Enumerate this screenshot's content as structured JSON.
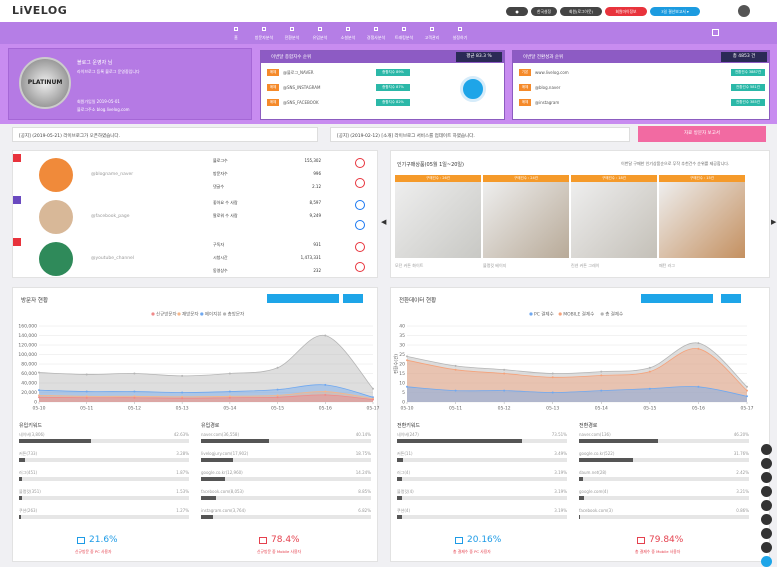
{
  "header": {
    "logo": "LiVELOG",
    "buttons": [
      "●",
      "한국설정",
      "회원(로그아웃)",
      "회원마이정보",
      "3일 결산보고서 ▾"
    ]
  },
  "nav": [
    "홈",
    "방문자분석",
    "전환분석",
    "유입분석",
    "소셜분석",
    "경쟁사분석",
    "트래킹분석",
    "고객관리",
    "설정하기"
  ],
  "profile": {
    "grade": "PLATINUM",
    "name": "블로그 운영자 님",
    "desc": "라이브로그 등록 블로그 운영중입니다",
    "since": "회원가입일 2019-05-01",
    "email": "블로그주소 blog.livelog.com"
  },
  "rank_left": {
    "title": "이번달 종합지수 순위",
    "badge": "평균 83.3 %",
    "rows": [
      {
        "tag": "매체",
        "name": "@블로그_NAVER",
        "score": "종합지수 89%"
      },
      {
        "tag": "매체",
        "name": "@SNS_INSTAGRAM",
        "score": "종합지수 87%"
      },
      {
        "tag": "매체",
        "name": "@SNS_FACEBOOK",
        "score": "종합지수 82%"
      }
    ]
  },
  "rank_right": {
    "title": "이번달 전환성과 순위",
    "badge": "총 4853 건",
    "rows": [
      {
        "tag": "기본",
        "name": "www.livelog.com",
        "score": "전환건수 3887건"
      },
      {
        "tag": "매체",
        "name": "@blog.naver",
        "score": "전환건수 581건"
      },
      {
        "tag": "매체",
        "name": "@instagram",
        "score": "전환건수 385건"
      }
    ]
  },
  "notices": [
    "[공지] (2019-05-21) 라이브로그가 오픈하였습니다.",
    "[공지] (2019-02-12) [소개] 라이브로그 서비스를 업데이트 하였습니다."
  ],
  "report_button": "자료 방문자 보고서",
  "social": [
    {
      "name": "@blogname_naver",
      "stats": [
        [
          "블로그수",
          "155,302"
        ],
        [
          "방문자수",
          "996"
        ],
        [
          "댓글수",
          "2.12"
        ]
      ]
    },
    {
      "name": "@facebook_page",
      "stats": [
        [
          "좋아요 수 사람",
          "8,597"
        ],
        [
          "팔로워 수 사람",
          "9,249"
        ]
      ]
    },
    {
      "name": "@youtube_channel",
      "stats": [
        [
          "구독자",
          "931"
        ],
        [
          "시청시간",
          "1,473,331"
        ],
        [
          "동영상수",
          "232"
        ]
      ]
    }
  ],
  "products": {
    "title": "인기구매상품(05월 1일~20일)",
    "subtitle": "이번달 구매한 인기상품순으로 무작 추천건수 순위를 제공합니다.",
    "items": [
      {
        "tag": "구매건수 : 26건",
        "name": "모던 커튼 화이트"
      },
      {
        "tag": "구매건수 : 24건",
        "name": "블랭킷 베이지"
      },
      {
        "tag": "구매건수 : 18건",
        "name": "린넨 커튼 그레이"
      },
      {
        "tag": "구매건수 : 15건",
        "name": "패턴 러그"
      }
    ]
  },
  "chart_data": [
    {
      "type": "area",
      "title": "방문자 현황",
      "categories": [
        "05-10",
        "05-11",
        "05-12",
        "05-13",
        "05-14",
        "05-15",
        "05-16",
        "05-17"
      ],
      "series": [
        {
          "name": "신규방문자",
          "color": "#f08a8a",
          "values": [
            10000,
            9000,
            9000,
            8000,
            9000,
            10000,
            15000,
            5000
          ]
        },
        {
          "name": "재방문자",
          "color": "#f5b68a",
          "values": [
            14000,
            12000,
            12000,
            11000,
            12000,
            14000,
            22000,
            7000
          ]
        },
        {
          "name": "페이지뷰",
          "color": "#6fa8f0",
          "values": [
            25000,
            22000,
            22000,
            20000,
            22000,
            26000,
            36000,
            10000
          ]
        },
        {
          "name": "총방문자",
          "color": "#b5b5b5",
          "values": [
            62000,
            58000,
            60000,
            55000,
            60000,
            72000,
            140000,
            28000
          ]
        }
      ],
      "ylim": [
        0,
        160000
      ],
      "yticks": [
        0,
        {
          "value": 20000,
          "label": "20,000"
        },
        {
          "value": 40000,
          "label": "40,000"
        },
        {
          "value": 60000,
          "label": "60,000"
        },
        {
          "value": 80000,
          "label": "80,000"
        },
        {
          "value": 100000,
          "label": "100,000"
        },
        {
          "value": 120000,
          "label": "120,000"
        },
        {
          "value": 140000,
          "label": "140,000"
        },
        {
          "value": 160000,
          "label": "160,000"
        }
      ],
      "grid": true
    },
    {
      "type": "area",
      "title": "전환데이터 현황",
      "y_label": "전환수(건)",
      "categories": [
        "05-10",
        "05-11",
        "05-12",
        "05-13",
        "05-14",
        "05-15",
        "05-16",
        "05-17"
      ],
      "series": [
        {
          "name": "PC 결제수",
          "color": "#6fa8f0",
          "values": [
            8,
            6,
            6,
            5,
            6,
            7,
            8,
            3
          ]
        },
        {
          "name": "MOBILE 결제수",
          "color": "#f5a27a",
          "values": [
            22,
            17,
            15,
            13,
            14,
            16,
            28,
            6
          ]
        },
        {
          "name": "총 결제수",
          "color": "#b5b5b5",
          "values": [
            24,
            19,
            17,
            15,
            16,
            18,
            31,
            8
          ]
        }
      ],
      "ylim": [
        0,
        40
      ],
      "yticks": [
        0,
        5,
        10,
        15,
        20,
        25,
        30,
        35,
        40
      ],
      "grid": true
    }
  ],
  "keywords": [
    {
      "title": "유입키워드",
      "items": [
        {
          "name": "네이버(3,806)",
          "value": 42.63,
          "label": "42.63%"
        },
        {
          "name": "커튼(733)",
          "value": 3.28,
          "label": "3.28%"
        },
        {
          "name": "러그(451)",
          "value": 1.87,
          "label": "1.87%"
        },
        {
          "name": "블랭킷(351)",
          "value": 1.53,
          "label": "1.53%"
        },
        {
          "name": "쿠션(263)",
          "value": 1.27,
          "label": "1.27%"
        }
      ]
    },
    {
      "title": "유입경로",
      "items": [
        {
          "name": "naver.com(36,558)",
          "value": 40.14,
          "label": "40.14%"
        },
        {
          "name": "livelogjury.com(17,902)",
          "value": 18.75,
          "label": "18.75%"
        },
        {
          "name": "google.co.kr(12,960)",
          "value": 14.24,
          "label": "14.24%"
        },
        {
          "name": "facebook.com(8,053)",
          "value": 8.85,
          "label": "8.85%"
        },
        {
          "name": "instagram.com(3,764)",
          "value": 6.82,
          "label": "6.82%"
        }
      ]
    },
    {
      "title": "전환키워드",
      "items": [
        {
          "name": "네이버(247)",
          "value": 73.51,
          "label": "73.51%"
        },
        {
          "name": "커튼(11)",
          "value": 3.49,
          "label": "3.49%"
        },
        {
          "name": "러그(4)",
          "value": 3.19,
          "label": "3.19%"
        },
        {
          "name": "블랭킷(4)",
          "value": 3.19,
          "label": "3.19%"
        },
        {
          "name": "쿠션(4)",
          "value": 3.19,
          "label": "3.19%"
        }
      ]
    },
    {
      "title": "전환경로",
      "items": [
        {
          "name": "naver.com(136)",
          "value": 46.2,
          "label": "46.20%"
        },
        {
          "name": "google.co.kr(522)",
          "value": 31.76,
          "label": "31.76%"
        },
        {
          "name": "daum.net(28)",
          "value": 2.42,
          "label": "2.42%"
        },
        {
          "name": "google.com(4)",
          "value": 3.21,
          "label": "3.21%"
        },
        {
          "name": "facebook.com(3)",
          "value": 0.86,
          "label": "0.86%"
        }
      ]
    }
  ],
  "totals": [
    {
      "value": "21.6%",
      "caption": "신규방문 중 PC 사용자"
    },
    {
      "value": "78.4%",
      "caption": "신규방문 중 Mobile 사용자"
    },
    {
      "value": "20.16%",
      "caption": "총 결제수 중 PC 사용자"
    },
    {
      "value": "79.84%",
      "caption": "총 결제수 중 Mobile 사용자"
    }
  ]
}
